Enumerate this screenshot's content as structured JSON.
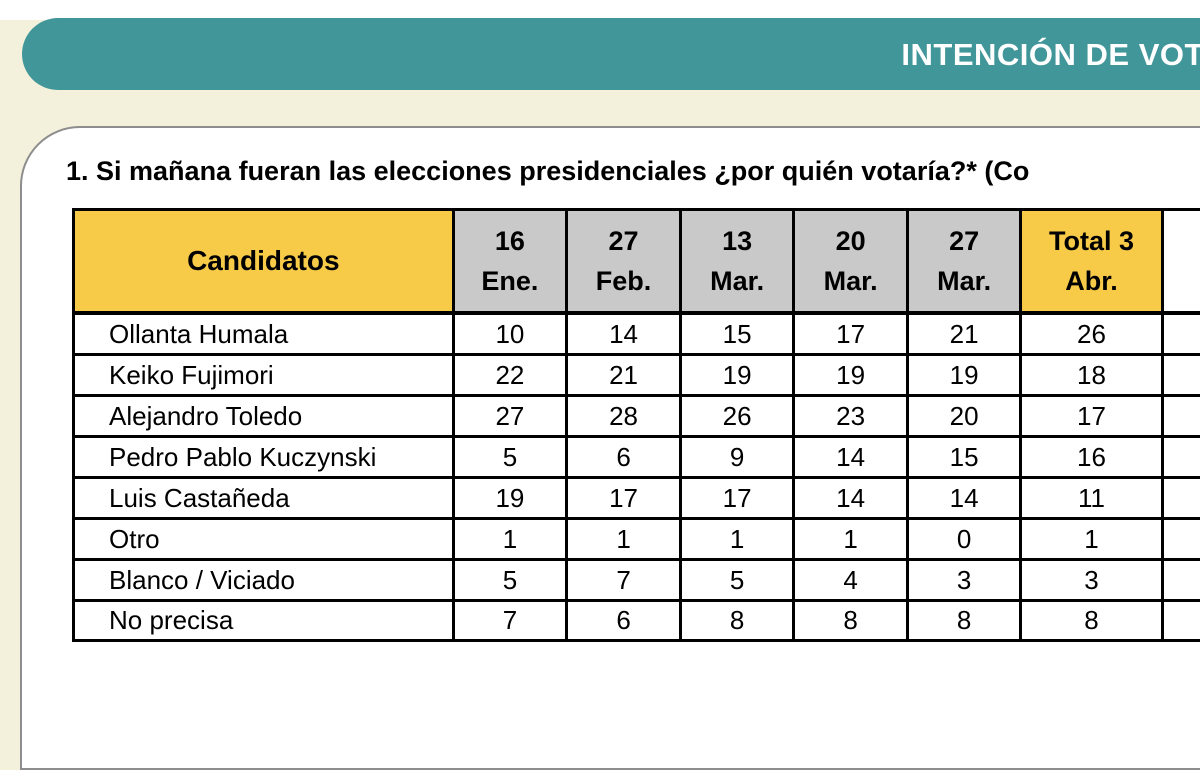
{
  "header": {
    "title": "INTENCIÓN DE VOTO"
  },
  "question": "1. Si mañana fueran las elecciones presidenciales ¿por quién votaría?*  (Co",
  "table": {
    "columns": [
      {
        "line1": "Candidatos",
        "line2": ""
      },
      {
        "line1": "16",
        "line2": "Ene."
      },
      {
        "line1": "27",
        "line2": "Feb."
      },
      {
        "line1": "13",
        "line2": "Mar."
      },
      {
        "line1": "20",
        "line2": "Mar."
      },
      {
        "line1": "27",
        "line2": "Mar."
      },
      {
        "line1": "Total 3",
        "line2": "Abr."
      }
    ],
    "rows": [
      {
        "name": "Ollanta Humala",
        "values": [
          "10",
          "14",
          "15",
          "17",
          "21",
          "26"
        ]
      },
      {
        "name": "Keiko Fujimori",
        "values": [
          "22",
          "21",
          "19",
          "19",
          "19",
          "18"
        ]
      },
      {
        "name": "Alejandro Toledo",
        "values": [
          "27",
          "28",
          "26",
          "23",
          "20",
          "17"
        ]
      },
      {
        "name": "Pedro Pablo Kuczynski",
        "values": [
          "5",
          "6",
          "9",
          "14",
          "15",
          "16"
        ]
      },
      {
        "name": "Luis Castañeda",
        "values": [
          "19",
          "17",
          "17",
          "14",
          "14",
          "11"
        ]
      },
      {
        "name": "Otro",
        "values": [
          "1",
          "1",
          "1",
          "1",
          "0",
          "1"
        ]
      },
      {
        "name": "Blanco / Viciado",
        "values": [
          "5",
          "7",
          "5",
          "4",
          "3",
          "3"
        ]
      },
      {
        "name": "No precisa",
        "values": [
          "7",
          "6",
          "8",
          "8",
          "8",
          "8"
        ]
      }
    ]
  },
  "colors": {
    "banner": "#41969a",
    "header_highlight": "#f7cb48",
    "header_gray": "#c9c9c9",
    "page_background": "#f3f0dc"
  }
}
